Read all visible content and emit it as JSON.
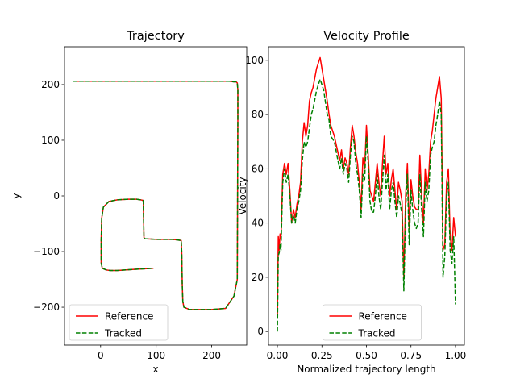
{
  "chart_data": [
    {
      "type": "line",
      "title": "Trajectory",
      "xlabel": "x",
      "ylabel": "y",
      "xlim": [
        -65,
        263
      ],
      "ylim": [
        -268,
        268
      ],
      "xticks": [
        0,
        100,
        200
      ],
      "xtick_labels": [
        "0",
        "100",
        "200"
      ],
      "yticks": [
        -200,
        -100,
        0,
        100,
        200
      ],
      "ytick_labels": [
        "−200",
        "−100",
        "0",
        "100",
        "200"
      ],
      "legend": {
        "position": "lower-left",
        "entries": [
          "Reference",
          "Tracked"
        ]
      },
      "series": [
        {
          "name": "Reference",
          "color": "#ff0000",
          "style": "solid",
          "x": [
            -50,
            20,
            100,
            160,
            175,
            190,
            205,
            220,
            232,
            240,
            244,
            246,
            247,
            247,
            246,
            240,
            225,
            200,
            160,
            150,
            148,
            147,
            146,
            145,
            130,
            100,
            80,
            78,
            77,
            77,
            76,
            72,
            65,
            50,
            30,
            15,
            5,
            2,
            1,
            1,
            3,
            10,
            17,
            30,
            60,
            95
          ],
          "y": [
            206,
            206,
            206,
            206,
            206,
            206,
            206,
            206,
            206,
            205,
            205,
            203,
            190,
            140,
            -150,
            -180,
            -202,
            -204,
            -204,
            -200,
            -190,
            -160,
            -100,
            -80,
            -78,
            -78,
            -77,
            -75,
            -20,
            -10,
            -8,
            -7,
            -6,
            -6,
            -7,
            -10,
            -20,
            -40,
            -80,
            -120,
            -130,
            -133,
            -134,
            -134,
            -132,
            -130
          ]
        },
        {
          "name": "Tracked",
          "color": "#008000",
          "style": "dashed",
          "x": [
            -50,
            20,
            100,
            160,
            175,
            190,
            205,
            220,
            232,
            240,
            244,
            246,
            247,
            247,
            246,
            240,
            225,
            200,
            160,
            150,
            148,
            147,
            146,
            145,
            130,
            100,
            80,
            78,
            77,
            77,
            76,
            72,
            65,
            50,
            30,
            15,
            5,
            2,
            1,
            1,
            3,
            10,
            17,
            30,
            60,
            95
          ],
          "y": [
            206,
            206,
            206,
            206,
            206,
            206,
            206,
            206,
            206,
            205,
            205,
            203,
            190,
            140,
            -150,
            -180,
            -202,
            -204,
            -204,
            -200,
            -190,
            -160,
            -100,
            -80,
            -78,
            -78,
            -77,
            -75,
            -20,
            -10,
            -8,
            -7,
            -6,
            -6,
            -7,
            -10,
            -20,
            -40,
            -80,
            -120,
            -130,
            -133,
            -134,
            -134,
            -132,
            -130
          ]
        }
      ]
    },
    {
      "type": "line",
      "title": "Velocity Profile",
      "xlabel": "Normalized trajectory length",
      "ylabel": "Velocity",
      "xlim": [
        -0.05,
        1.05
      ],
      "ylim": [
        -5,
        105
      ],
      "xticks": [
        0,
        0.25,
        0.5,
        0.75,
        1.0
      ],
      "xtick_labels": [
        "0.00",
        "0.25",
        "0.50",
        "0.75",
        "1.00"
      ],
      "yticks": [
        0,
        20,
        40,
        60,
        80,
        100
      ],
      "ytick_labels": [
        "0",
        "20",
        "40",
        "60",
        "80",
        "100"
      ],
      "legend": {
        "position": "lower-center",
        "entries": [
          "Reference",
          "Tracked"
        ]
      },
      "series": [
        {
          "name": "Reference",
          "color": "#ff0000",
          "style": "solid",
          "x": [
            0,
            0.005,
            0.01,
            0.015,
            0.02,
            0.03,
            0.04,
            0.05,
            0.06,
            0.07,
            0.08,
            0.09,
            0.1,
            0.11,
            0.12,
            0.13,
            0.14,
            0.15,
            0.16,
            0.17,
            0.18,
            0.19,
            0.2,
            0.22,
            0.24,
            0.26,
            0.28,
            0.29,
            0.3,
            0.32,
            0.34,
            0.35,
            0.36,
            0.37,
            0.38,
            0.39,
            0.4,
            0.41,
            0.42,
            0.43,
            0.44,
            0.45,
            0.46,
            0.47,
            0.48,
            0.49,
            0.5,
            0.51,
            0.52,
            0.53,
            0.54,
            0.55,
            0.56,
            0.57,
            0.58,
            0.59,
            0.6,
            0.61,
            0.62,
            0.63,
            0.64,
            0.65,
            0.66,
            0.67,
            0.68,
            0.69,
            0.7,
            0.71,
            0.72,
            0.73,
            0.74,
            0.75,
            0.76,
            0.77,
            0.78,
            0.79,
            0.8,
            0.81,
            0.82,
            0.83,
            0.84,
            0.85,
            0.86,
            0.87,
            0.88,
            0.89,
            0.9,
            0.91,
            0.92,
            0.93,
            0.94,
            0.95,
            0.96,
            0.97,
            0.98,
            0.99,
            1.0
          ],
          "y": [
            5,
            35,
            30,
            36,
            34,
            58,
            62,
            58,
            62,
            52,
            40,
            45,
            42,
            47,
            50,
            55,
            70,
            77,
            72,
            76,
            85,
            88,
            90,
            97,
            101,
            93,
            85,
            80,
            76,
            72,
            66,
            63,
            67,
            60,
            64,
            62,
            58,
            68,
            76,
            72,
            66,
            62,
            55,
            45,
            64,
            60,
            76,
            65,
            52,
            50,
            48,
            55,
            62,
            55,
            50,
            62,
            72,
            58,
            62,
            50,
            56,
            60,
            52,
            45,
            55,
            52,
            48,
            20,
            50,
            62,
            38,
            56,
            50,
            46,
            45,
            45,
            65,
            50,
            40,
            60,
            52,
            58,
            70,
            74,
            80,
            86,
            90,
            94,
            86,
            30,
            32,
            55,
            60,
            35,
            30,
            42,
            35
          ],
          "xrange_note": ""
        },
        {
          "name": "Tracked",
          "color": "#008000",
          "style": "dashed",
          "x": [
            0,
            0.005,
            0.01,
            0.015,
            0.02,
            0.03,
            0.04,
            0.05,
            0.06,
            0.07,
            0.08,
            0.09,
            0.1,
            0.11,
            0.12,
            0.13,
            0.14,
            0.15,
            0.16,
            0.17,
            0.18,
            0.19,
            0.2,
            0.22,
            0.24,
            0.26,
            0.28,
            0.29,
            0.3,
            0.32,
            0.34,
            0.35,
            0.36,
            0.37,
            0.38,
            0.39,
            0.4,
            0.41,
            0.42,
            0.43,
            0.44,
            0.45,
            0.46,
            0.47,
            0.48,
            0.49,
            0.5,
            0.51,
            0.52,
            0.53,
            0.54,
            0.55,
            0.56,
            0.57,
            0.58,
            0.59,
            0.6,
            0.61,
            0.62,
            0.63,
            0.64,
            0.65,
            0.66,
            0.67,
            0.68,
            0.69,
            0.7,
            0.71,
            0.72,
            0.73,
            0.74,
            0.75,
            0.76,
            0.77,
            0.78,
            0.79,
            0.8,
            0.81,
            0.82,
            0.83,
            0.84,
            0.85,
            0.86,
            0.87,
            0.88,
            0.89,
            0.9,
            0.91,
            0.92,
            0.93,
            0.94,
            0.95,
            0.96,
            0.97,
            0.98,
            0.99,
            1.0
          ],
          "y": [
            0,
            28,
            29,
            32,
            30,
            55,
            60,
            55,
            58,
            50,
            40,
            43,
            40,
            45,
            48,
            52,
            63,
            70,
            68,
            70,
            75,
            80,
            82,
            89,
            93,
            89,
            80,
            78,
            72,
            70,
            63,
            60,
            64,
            58,
            62,
            60,
            55,
            65,
            72,
            70,
            62,
            58,
            52,
            42,
            58,
            56,
            72,
            62,
            48,
            44,
            44,
            50,
            58,
            50,
            45,
            55,
            65,
            52,
            58,
            45,
            52,
            55,
            48,
            42,
            50,
            47,
            43,
            15,
            45,
            58,
            32,
            52,
            45,
            40,
            38,
            40,
            58,
            45,
            35,
            55,
            48,
            52,
            65,
            68,
            70,
            76,
            80,
            85,
            80,
            20,
            28,
            50,
            55,
            30,
            25,
            35,
            10
          ],
          "xrange_note": ""
        }
      ]
    }
  ]
}
